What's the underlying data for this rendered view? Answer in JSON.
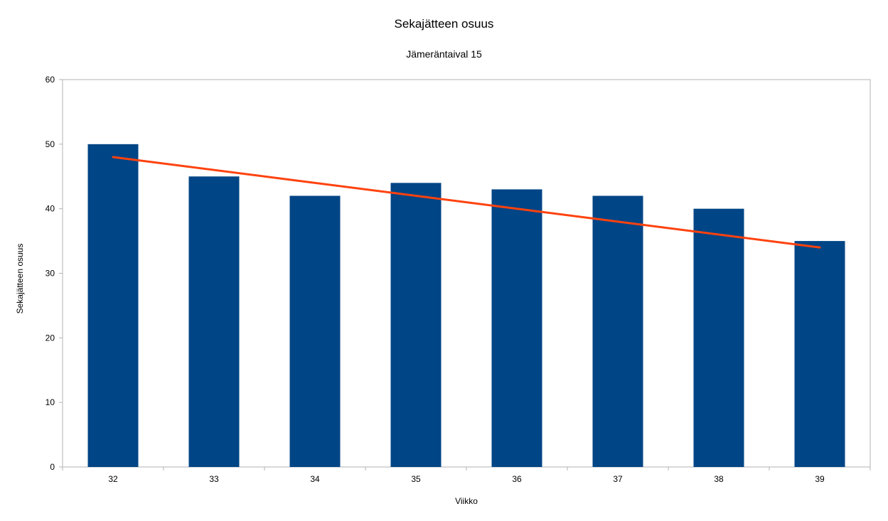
{
  "chart_data": {
    "type": "bar",
    "title": "Sekajätteen osuus",
    "subtitle": "Jämeräntaival 15",
    "xlabel": "Viikko",
    "ylabel": "Sekajätteen osuus",
    "categories": [
      "32",
      "33",
      "34",
      "35",
      "36",
      "37",
      "38",
      "39"
    ],
    "values": [
      50,
      45,
      42,
      44,
      43,
      42,
      40,
      35
    ],
    "ylim": [
      0,
      60
    ],
    "yticks": [
      0,
      10,
      20,
      30,
      40,
      50,
      60
    ],
    "grid": false,
    "legend": "none",
    "trendline": {
      "type": "linear",
      "start": 48,
      "end": 34
    },
    "colors": {
      "bar": "#004586",
      "trendline": "#ff420e",
      "axis": "#b3b3b3"
    }
  }
}
